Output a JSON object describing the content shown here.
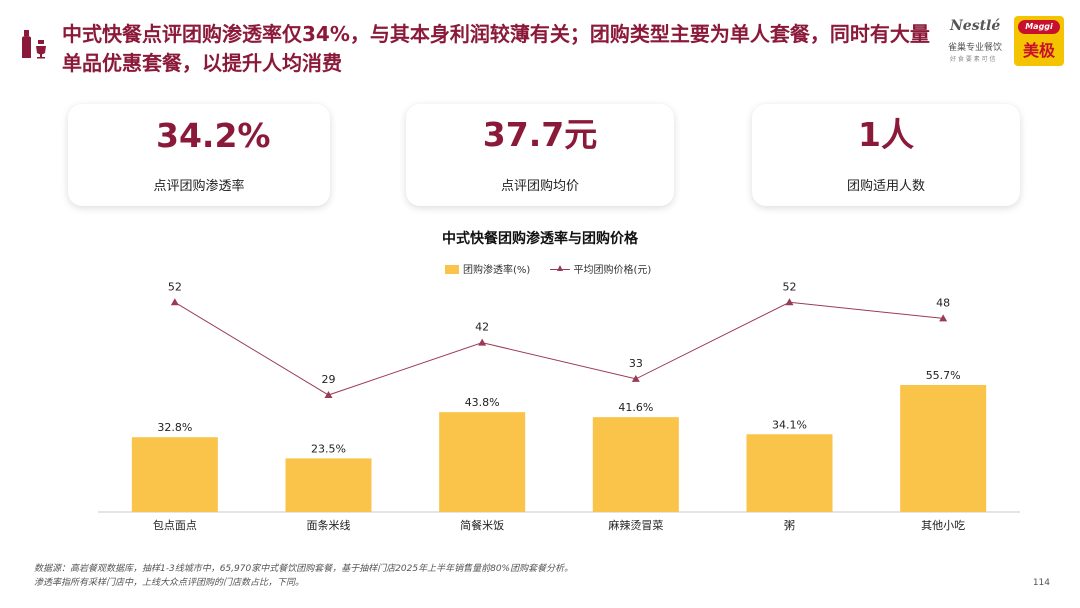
{
  "header": {
    "title": "中式快餐点评团购渗透率仅34%，与其本身利润较薄有关；团购类型主要为单人套餐，同时有大量单品优惠套餐，以提升人均消费"
  },
  "brand": {
    "nestle_name": "Nestlé",
    "nestle_sub": "雀巢专业餐饮",
    "nestle_tiny": "好 食 要 素 可 信",
    "maggi_name": "Maggi",
    "maggi_cn": "美极"
  },
  "kpis": [
    {
      "value": "34.2%",
      "label": "点评团购渗透率"
    },
    {
      "value": "37.7元",
      "label": "点评团购均价"
    },
    {
      "value": "1人",
      "label": "团购适用人数"
    }
  ],
  "chart_data": {
    "type": "bar",
    "title": "中式快餐团购渗透率与团购价格",
    "categories": [
      "包点面点",
      "面条米线",
      "简餐米饭",
      "麻辣烫冒菜",
      "粥",
      "其他小吃"
    ],
    "series": [
      {
        "name": "团购渗透率(%)",
        "type": "bar",
        "values": [
          32.8,
          23.5,
          43.8,
          41.6,
          34.1,
          55.7
        ],
        "labels": [
          "32.8%",
          "23.5%",
          "43.8%",
          "41.6%",
          "34.1%",
          "55.7%"
        ],
        "color": "#fac349"
      },
      {
        "name": "平均团购价格(元)",
        "type": "line",
        "values": [
          52,
          29,
          42,
          33,
          52,
          48
        ],
        "labels": [
          "52",
          "29",
          "42",
          "33",
          "52",
          "48"
        ],
        "color": "#9a3b55"
      }
    ],
    "ylim_bar": [
      0,
      100
    ],
    "ylim_line": [
      0,
      60
    ],
    "legend_position": "top-center",
    "grid": false
  },
  "footnote": {
    "line1": "数据源：高岩餐观数据库，抽样1-3线城市中，65,970家中式餐饮团购套餐，基于抽样门店2025年上半年销售量前80%团购套餐分析。",
    "line2": "渗透率指所有采样门店中，上线大众点评团购的门店数占比，下同。"
  },
  "page_number": "114",
  "colors": {
    "accent": "#8b1a3a",
    "bar": "#fac349",
    "line": "#9a3b55"
  }
}
